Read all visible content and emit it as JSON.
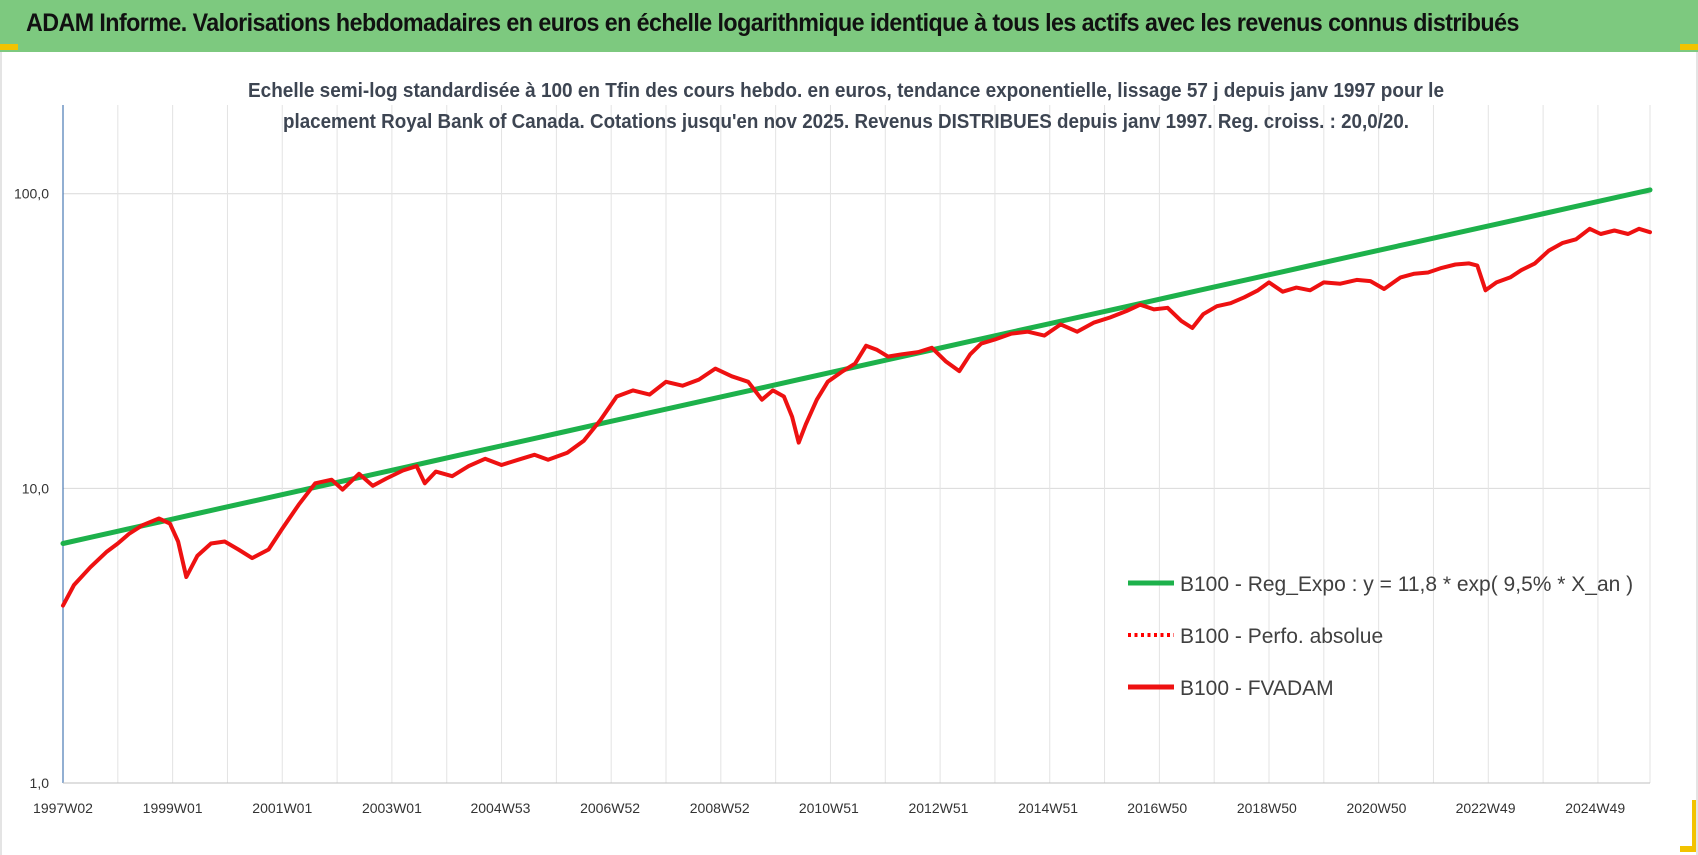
{
  "header": {
    "title": "ADAM Informe. Valorisations hebdomadaires en euros en échelle logarithmique identique à tous les actifs avec les revenus connus distribués",
    "background_color": "#7dc97f"
  },
  "chart_data": {
    "type": "line",
    "title_lines": [
      "Echelle semi-log standardisée à 100 en Tfin des cours hebdo. en euros, tendance exponentielle, lissage 57 j depuis janv 1997 pour le",
      "placement Royal Bank of Canada. Cotations jusqu'en nov 2025. Revenus DISTRIBUES depuis janv 1997. Reg. croiss. : 20,0/20."
    ],
    "y_scale": "log",
    "ylim": [
      1,
      200
    ],
    "y_ticks": [
      {
        "value": 1,
        "label": "1,0"
      },
      {
        "value": 10,
        "label": "10,0"
      },
      {
        "value": 100,
        "label": "100,0"
      }
    ],
    "xlim": [
      1997.0,
      2025.95
    ],
    "x_ticks": [
      {
        "x": 1997.0,
        "label": "1997W02"
      },
      {
        "x": 1999.0,
        "label": "1999W01"
      },
      {
        "x": 2001.0,
        "label": "2001W01"
      },
      {
        "x": 2003.0,
        "label": "2003W01"
      },
      {
        "x": 2004.98,
        "label": "2004W53"
      },
      {
        "x": 2006.98,
        "label": "2006W52"
      },
      {
        "x": 2008.98,
        "label": "2008W52"
      },
      {
        "x": 2010.97,
        "label": "2010W51"
      },
      {
        "x": 2012.97,
        "label": "2012W51"
      },
      {
        "x": 2014.97,
        "label": "2014W51"
      },
      {
        "x": 2016.96,
        "label": "2016W50"
      },
      {
        "x": 2018.96,
        "label": "2018W50"
      },
      {
        "x": 2020.96,
        "label": "2020W50"
      },
      {
        "x": 2022.95,
        "label": "2022W49"
      },
      {
        "x": 2024.95,
        "label": "2024W49"
      }
    ],
    "grid": true,
    "legend_position": "bottom-right",
    "series": [
      {
        "name": "B100 - Reg_Expo : y = 11,8 * exp( 9,5% *  X_an )",
        "color": "#1db14b",
        "style": "solid",
        "points": [
          [
            1997.0,
            6.5
          ],
          [
            2025.95,
            103
          ]
        ]
      },
      {
        "name": "B100 - Perfo. absolue",
        "color": "#ff0000",
        "style": "dotted",
        "points": []
      },
      {
        "name": "B100 - FVADAM",
        "color": "#ee1111",
        "style": "solid",
        "points": [
          [
            1997.0,
            4.0
          ],
          [
            1997.2,
            4.7
          ],
          [
            1997.5,
            5.4
          ],
          [
            1997.8,
            6.1
          ],
          [
            1998.0,
            6.5
          ],
          [
            1998.2,
            7.0
          ],
          [
            1998.45,
            7.5
          ],
          [
            1998.75,
            7.9
          ],
          [
            1998.95,
            7.6
          ],
          [
            1999.1,
            6.6
          ],
          [
            1999.25,
            5.0
          ],
          [
            1999.45,
            5.9
          ],
          [
            1999.7,
            6.5
          ],
          [
            1999.95,
            6.6
          ],
          [
            2000.2,
            6.2
          ],
          [
            2000.45,
            5.8
          ],
          [
            2000.75,
            6.2
          ],
          [
            2001.0,
            7.3
          ],
          [
            2001.3,
            8.8
          ],
          [
            2001.6,
            10.4
          ],
          [
            2001.9,
            10.7
          ],
          [
            2002.1,
            9.9
          ],
          [
            2002.4,
            11.2
          ],
          [
            2002.65,
            10.2
          ],
          [
            2002.9,
            10.8
          ],
          [
            2003.2,
            11.5
          ],
          [
            2003.45,
            11.9
          ],
          [
            2003.6,
            10.4
          ],
          [
            2003.8,
            11.4
          ],
          [
            2004.1,
            11.0
          ],
          [
            2004.4,
            11.9
          ],
          [
            2004.7,
            12.6
          ],
          [
            2005.0,
            12.0
          ],
          [
            2005.3,
            12.5
          ],
          [
            2005.6,
            13.0
          ],
          [
            2005.85,
            12.5
          ],
          [
            2006.2,
            13.2
          ],
          [
            2006.5,
            14.5
          ],
          [
            2006.8,
            17.0
          ],
          [
            2007.1,
            20.5
          ],
          [
            2007.4,
            21.5
          ],
          [
            2007.7,
            20.8
          ],
          [
            2008.0,
            23.0
          ],
          [
            2008.3,
            22.3
          ],
          [
            2008.6,
            23.4
          ],
          [
            2008.9,
            25.5
          ],
          [
            2009.2,
            24.0
          ],
          [
            2009.5,
            23.0
          ],
          [
            2009.75,
            20.0
          ],
          [
            2009.95,
            21.5
          ],
          [
            2010.15,
            20.5
          ],
          [
            2010.3,
            17.5
          ],
          [
            2010.42,
            14.3
          ],
          [
            2010.55,
            16.5
          ],
          [
            2010.75,
            20.0
          ],
          [
            2010.95,
            23.0
          ],
          [
            2011.2,
            24.8
          ],
          [
            2011.45,
            26.5
          ],
          [
            2011.65,
            30.5
          ],
          [
            2011.85,
            29.5
          ],
          [
            2012.05,
            28.0
          ],
          [
            2012.3,
            28.5
          ],
          [
            2012.6,
            29.0
          ],
          [
            2012.85,
            30.0
          ],
          [
            2013.1,
            27.0
          ],
          [
            2013.35,
            25.0
          ],
          [
            2013.55,
            28.5
          ],
          [
            2013.75,
            31.0
          ],
          [
            2014.0,
            32.0
          ],
          [
            2014.3,
            33.5
          ],
          [
            2014.6,
            34.0
          ],
          [
            2014.9,
            33.0
          ],
          [
            2015.2,
            36.0
          ],
          [
            2015.5,
            34.0
          ],
          [
            2015.8,
            36.5
          ],
          [
            2016.1,
            38.0
          ],
          [
            2016.4,
            40.0
          ],
          [
            2016.65,
            42.0
          ],
          [
            2016.9,
            40.5
          ],
          [
            2017.15,
            41.0
          ],
          [
            2017.4,
            37.0
          ],
          [
            2017.6,
            35.0
          ],
          [
            2017.8,
            39.0
          ],
          [
            2018.05,
            41.5
          ],
          [
            2018.3,
            42.5
          ],
          [
            2018.55,
            44.5
          ],
          [
            2018.8,
            47.0
          ],
          [
            2019.0,
            50.0
          ],
          [
            2019.25,
            46.5
          ],
          [
            2019.5,
            48.0
          ],
          [
            2019.75,
            47.0
          ],
          [
            2020.0,
            50.0
          ],
          [
            2020.3,
            49.5
          ],
          [
            2020.6,
            51.0
          ],
          [
            2020.85,
            50.5
          ],
          [
            2021.1,
            47.5
          ],
          [
            2021.4,
            52.0
          ],
          [
            2021.65,
            53.5
          ],
          [
            2021.9,
            54.0
          ],
          [
            2022.15,
            56.0
          ],
          [
            2022.4,
            57.5
          ],
          [
            2022.65,
            58.0
          ],
          [
            2022.8,
            57.0
          ],
          [
            2022.95,
            47.0
          ],
          [
            2023.15,
            50.0
          ],
          [
            2023.4,
            52.0
          ],
          [
            2023.6,
            55.0
          ],
          [
            2023.85,
            58.0
          ],
          [
            2024.1,
            64.0
          ],
          [
            2024.35,
            68.0
          ],
          [
            2024.6,
            70.0
          ],
          [
            2024.85,
            76.0
          ],
          [
            2025.05,
            73.0
          ],
          [
            2025.3,
            75.0
          ],
          [
            2025.55,
            73.0
          ],
          [
            2025.75,
            76.0
          ],
          [
            2025.95,
            74.0
          ]
        ]
      }
    ]
  }
}
